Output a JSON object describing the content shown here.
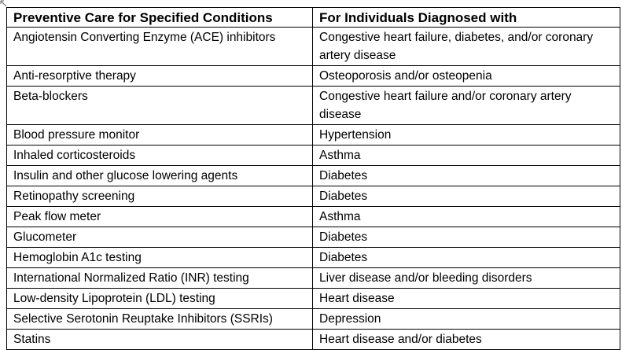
{
  "table": {
    "headers": [
      "Preventive Care for Specified Conditions",
      "For Individuals Diagnosed with"
    ],
    "rows": [
      [
        "Angiotensin Converting Enzyme (ACE) inhibitors",
        "Congestive heart failure, diabetes, and/or coronary artery disease"
      ],
      [
        "Anti-resorptive therapy",
        "Osteoporosis and/or osteopenia"
      ],
      [
        "Beta-blockers",
        "Congestive heart failure and/or coronary artery disease"
      ],
      [
        "Blood pressure monitor",
        "Hypertension"
      ],
      [
        "Inhaled corticosteroids",
        "Asthma"
      ],
      [
        "Insulin and other glucose lowering agents",
        "Diabetes"
      ],
      [
        "Retinopathy screening",
        "Diabetes"
      ],
      [
        "Peak flow meter",
        "Asthma"
      ],
      [
        "Glucometer",
        "Diabetes"
      ],
      [
        "Hemoglobin A1c testing",
        "Diabetes"
      ],
      [
        "International Normalized Ratio (INR) testing",
        "Liver disease and/or bleeding disorders"
      ],
      [
        "Low-density Lipoprotein (LDL) testing",
        "Heart disease"
      ],
      [
        "Selective Serotonin Reuptake Inhibitors (SSRIs)",
        "Depression"
      ],
      [
        "Statins",
        "Heart disease and/or diabetes"
      ]
    ]
  }
}
